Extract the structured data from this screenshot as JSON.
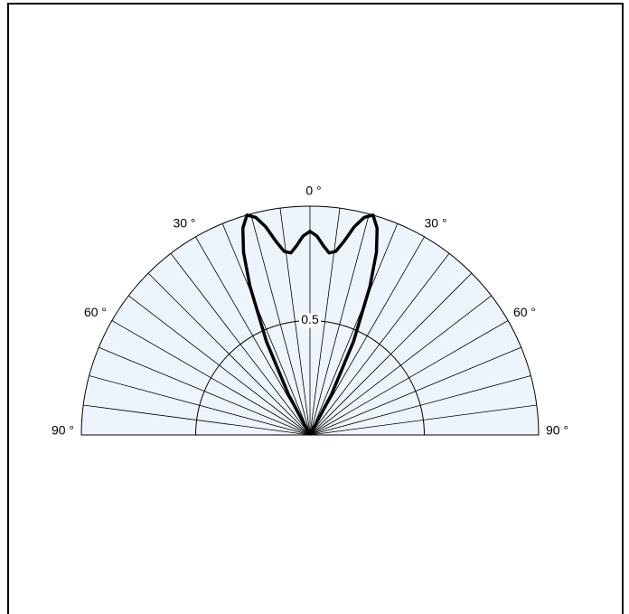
{
  "chart_data": {
    "type": "polar",
    "theta": [
      -30,
      -28,
      -25,
      -22,
      -20,
      -18,
      -16,
      -14,
      -12,
      -10,
      -8,
      -6,
      -4,
      -2,
      0,
      2,
      4,
      6,
      8,
      10,
      12,
      14,
      16,
      18,
      20,
      22,
      25,
      28,
      30
    ],
    "values": [
      0,
      0.2,
      0.45,
      0.7,
      0.85,
      0.95,
      1.0,
      0.98,
      0.93,
      0.86,
      0.81,
      0.8,
      0.83,
      0.87,
      0.89,
      0.87,
      0.83,
      0.8,
      0.81,
      0.86,
      0.93,
      0.98,
      1.0,
      0.95,
      0.85,
      0.7,
      0.45,
      0.2,
      0
    ],
    "color": "#000000",
    "thetalim": [
      -90,
      90
    ],
    "rlim": [
      0,
      1
    ],
    "rticks": [
      0.5
    ],
    "thetaticks": [
      {
        "value": -90,
        "label": "90 °"
      },
      {
        "value": -60,
        "label": "60 °"
      },
      {
        "value": -30,
        "label": "30 °"
      },
      {
        "value": 0,
        "label": "0 °"
      },
      {
        "value": 30,
        "label": "30 °"
      },
      {
        "value": 60,
        "label": "60 °"
      },
      {
        "value": 90,
        "label": "90 °"
      }
    ],
    "thetagrid": [
      -90,
      -82.5,
      -75,
      -67.5,
      -60,
      -52.5,
      -45,
      -37.5,
      -30,
      -22.5,
      -15,
      -7.5,
      0,
      7.5,
      15,
      22.5,
      30,
      37.5,
      45,
      52.5,
      60,
      67.5,
      75,
      82.5,
      90
    ],
    "background": "#eef4fb"
  }
}
